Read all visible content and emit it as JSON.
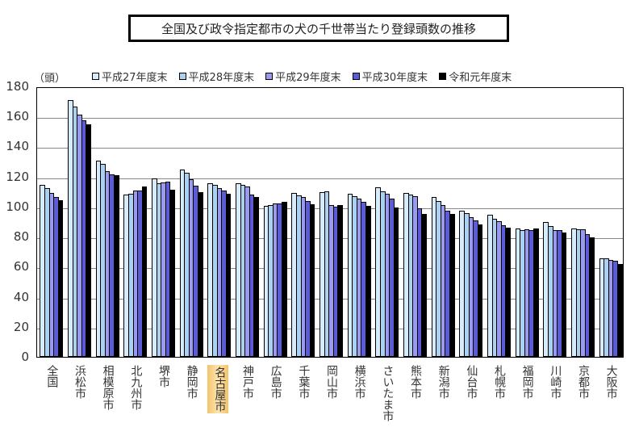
{
  "chart_data": {
    "type": "bar",
    "title": "全国及び政令指定都市の犬の千世帯当たり登録頭数の推移",
    "xlabel": "",
    "ylabel": "（頭）",
    "ylim": [
      0,
      180
    ],
    "yticks": [
      0,
      20,
      40,
      60,
      80,
      100,
      120,
      140,
      160,
      180
    ],
    "grid": true,
    "legend_position": "top",
    "highlighted_category": "名古屋市",
    "categories": [
      "全国",
      "浜松市",
      "相模原市",
      "北九州市",
      "堺市",
      "静岡市",
      "名古屋市",
      "神戸市",
      "広島市",
      "千葉市",
      "岡山市",
      "横浜市",
      "さいたま市",
      "熊本市",
      "新潟市",
      "仙台市",
      "札幌市",
      "福岡市",
      "川崎市",
      "京都市",
      "大阪市"
    ],
    "series": [
      {
        "name": "平成27年度末",
        "color": "#d6ecfa",
        "values": [
          114.5,
          171,
          130.6,
          108,
          118.6,
          124.6,
          115.4,
          115.4,
          100.4,
          109,
          109.5,
          108.4,
          112.8,
          109.1,
          106.4,
          97.3,
          94.4,
          85.3,
          90,
          85.3,
          65.6
        ]
      },
      {
        "name": "平成28年度末",
        "color": "#a9d2f2",
        "values": [
          112.4,
          166.7,
          128.5,
          108.4,
          115.4,
          122.6,
          114.3,
          114.3,
          100.9,
          107.4,
          110,
          106.8,
          110.1,
          108,
          103.7,
          95.9,
          91.7,
          84.2,
          87.3,
          84.7,
          65.6
        ]
      },
      {
        "name": "平成29年度末",
        "color": "#9a9af0",
        "values": [
          109,
          161.3,
          123.5,
          110.8,
          116.1,
          118.1,
          112.2,
          113.2,
          102.2,
          106.3,
          100.9,
          105.2,
          108.5,
          107,
          100.9,
          93.1,
          90.1,
          84.7,
          84.2,
          84.7,
          64.5
        ]
      },
      {
        "name": "平成30年度末",
        "color": "#5c5cd8",
        "values": [
          106.5,
          157.4,
          121.5,
          110.8,
          116.7,
          113.8,
          110.6,
          107.9,
          102.2,
          103.6,
          100.2,
          103.1,
          105.2,
          98.8,
          97.2,
          90.6,
          87.4,
          84.2,
          84.2,
          81.5,
          64
        ]
      },
      {
        "name": "令和元年度末",
        "color": "#000000",
        "values": [
          104.3,
          154.8,
          121,
          113.4,
          111,
          109.7,
          108.6,
          106.5,
          103.2,
          101.6,
          101.1,
          100.5,
          99.5,
          95.2,
          95.2,
          88.3,
          86,
          85.3,
          82.6,
          79.6,
          61.9
        ]
      }
    ]
  },
  "labels": {
    "title": "全国及び政令指定都市の犬の千世帯当たり登録頭数の推移",
    "unit": "（頭）",
    "legend": [
      "平成27年度末",
      "平成28年度末",
      "平成29年度末",
      "平成30年度末",
      "令和元年度末"
    ],
    "yticks": [
      "0",
      "20",
      "40",
      "60",
      "80",
      "100",
      "120",
      "140",
      "160",
      "180"
    ]
  }
}
